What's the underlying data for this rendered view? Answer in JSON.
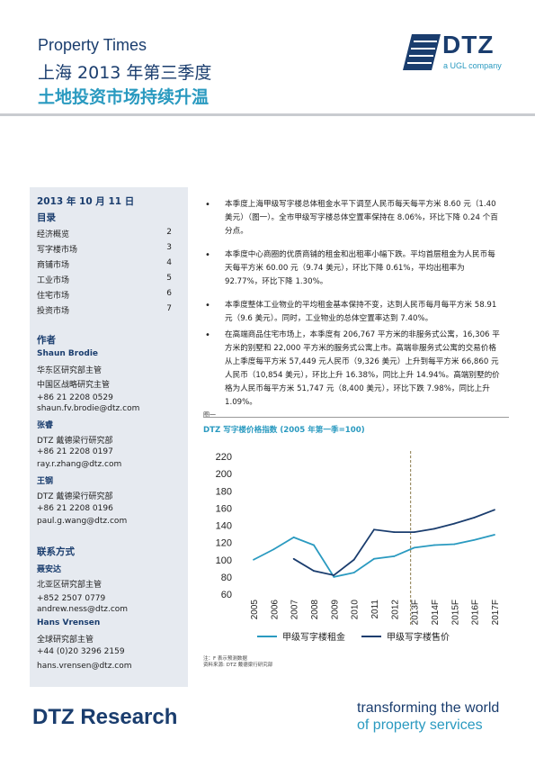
{
  "header": {
    "title": "Property Times",
    "subtitle": "上海 2013 年第三季度",
    "headline": "土地投资市场持续升温",
    "logo_text": "DTZ",
    "logo_tagline": "a UGL company"
  },
  "sidebar": {
    "date": "2013 年 10 月 11 日",
    "toc_heading": "目录",
    "toc": [
      {
        "label": "经济概览",
        "page": "2"
      },
      {
        "label": "写字楼市场",
        "page": "3"
      },
      {
        "label": "商铺市场",
        "page": "4"
      },
      {
        "label": "工业市场",
        "page": "5"
      },
      {
        "label": "住宅市场",
        "page": "6"
      },
      {
        "label": "投资市场",
        "page": "7"
      }
    ],
    "authors_heading": "作者",
    "authors": [
      {
        "name": "Shaun Brodie",
        "lines": [
          "华东区研究部主管",
          "中国区战略研究主管",
          "+86 21 2208 0529",
          "shaun.fv.brodie@dtz.com"
        ]
      },
      {
        "name": "张睿",
        "lines": [
          "DTZ 戴德梁行研究部",
          "+86 21 2208 0197",
          "ray.r.zhang@dtz.com"
        ]
      },
      {
        "name": "王钢",
        "lines": [
          "DTZ 戴德梁行研究部",
          "+86 21 2208 0196",
          "paul.g.wang@dtz.com"
        ]
      }
    ],
    "contact_heading": "联系方式",
    "contacts": [
      {
        "name": "聂安达",
        "lines": [
          "北亚区研究部主管",
          "+852 2507 0779",
          "andrew.ness@dtz.com"
        ]
      },
      {
        "name": "Hans Vrensen",
        "lines": [
          "全球研究部主管",
          "+44 (0)20 3296 2159",
          "hans.vrensen@dtz.com"
        ]
      }
    ]
  },
  "bullets": [
    "本季度上海甲级写字楼总体租金水平下调至人民币每天每平方米 8.60 元（1.40 美元）（图一）。全市甲级写字楼总体空置率保持在 8.06%，环比下降 0.24 个百分点。",
    "本季度中心商圈的优质商铺的租金和出租率小幅下跌。平均首层租金为人民币每天每平方米 60.00 元（9.74 美元），环比下降 0.61%，平均出租率为 92.77%，环比下降 1.30%。",
    "本季度整体工业物业的平均租金基本保持不变，达到人民币每月每平方米 58.91 元（9.6 美元）。同时，工业物业的总体空置率达到 7.40%。",
    "在高端商品住宅市场上，本季度有 206,767 平方米的非服务式公寓，16,306 平方米的别墅和 22,000 平方米的服务式公寓上市。高端非服务式公寓的交易价格从上季度每平方米 57,449 元人民币（9,326 美元）上升到每平方米 66,860 元人民币（10,854 美元），环比上升 16.38%，同比上升 14.94%。高端别墅的价格为人民币每平方米 51,747 元（8,400 美元），环比下跌 7.98%，同比上升 1.09%。"
  ],
  "figure_label": "图一",
  "chart_data": {
    "type": "line",
    "title": "DTZ 写字楼价格指数 (2005 年第一季=100)",
    "categories": [
      "2005",
      "2006",
      "2007",
      "2008",
      "2009",
      "2010",
      "2011",
      "2012",
      "2013F",
      "2014F",
      "2015F",
      "2016F",
      "2017F"
    ],
    "forecast_divider_after": "2013F",
    "ylim": [
      60,
      220
    ],
    "yticks": [
      60,
      80,
      100,
      120,
      140,
      160,
      180,
      200,
      220
    ],
    "grid": false,
    "legend_position": "bottom",
    "colors": {
      "rent": "#2a9ac0",
      "price": "#1a3d6e",
      "divider": "#8a7a4a"
    },
    "series": [
      {
        "name": "甲级写字楼租金",
        "key": "rent",
        "values": [
          100,
          112,
          126,
          117,
          80,
          85,
          101,
          104,
          114,
          117,
          118,
          123,
          129
        ]
      },
      {
        "name": "甲级写字楼售价",
        "key": "price",
        "values": [
          null,
          null,
          101,
          87,
          82,
          100,
          135,
          132,
          132,
          136,
          142,
          149,
          158
        ]
      }
    ]
  },
  "notes": {
    "line1": "注：F 表示预测数据",
    "line2": "资料来源: DTZ 戴德梁行研究部"
  },
  "footer": {
    "brand": "DTZ Research",
    "tagline_1": "transforming the world",
    "tagline_2": "of property services"
  }
}
